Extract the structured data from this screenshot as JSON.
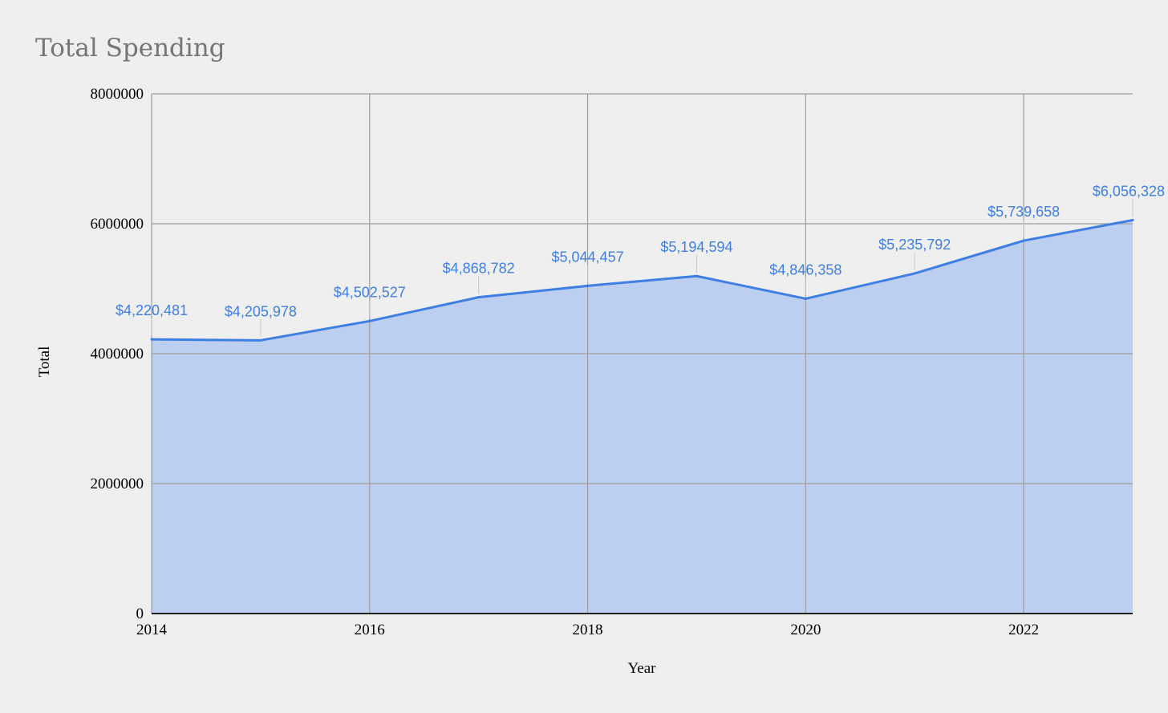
{
  "chart_data": {
    "type": "area",
    "title": "Total Spending",
    "xlabel": "Year",
    "ylabel": "Total",
    "x": [
      2014,
      2015,
      2016,
      2017,
      2018,
      2019,
      2020,
      2021,
      2022,
      2023
    ],
    "values": [
      4220481,
      4205978,
      4502527,
      4868782,
      5044457,
      5194594,
      4846358,
      5235792,
      5739658,
      6056328
    ],
    "data_labels": [
      "$4,220,481",
      "$4,205,978",
      "$4,502,527",
      "$4,868,782",
      "$5,044,457",
      "$5,194,594",
      "$4,846,358",
      "$5,235,792",
      "$5,739,658",
      "$6,056,328"
    ],
    "xlim": [
      2014,
      2023
    ],
    "ylim": [
      0,
      8000000
    ],
    "x_ticks": [
      2014,
      2016,
      2018,
      2020,
      2022
    ],
    "x_tick_labels": [
      "2014",
      "2016",
      "2018",
      "2020",
      "2022"
    ],
    "y_ticks": [
      0,
      2000000,
      4000000,
      6000000,
      8000000
    ],
    "y_tick_labels": [
      "0",
      "2000000",
      "4000000",
      "6000000",
      "8000000"
    ],
    "grid": true,
    "legend": "none",
    "colors": {
      "line": "#3f7fe3",
      "fill": "#bccff0",
      "label": "#3f7fe3",
      "grid": "#9e9e9e",
      "title": "#757575",
      "background": "#efefef"
    }
  }
}
